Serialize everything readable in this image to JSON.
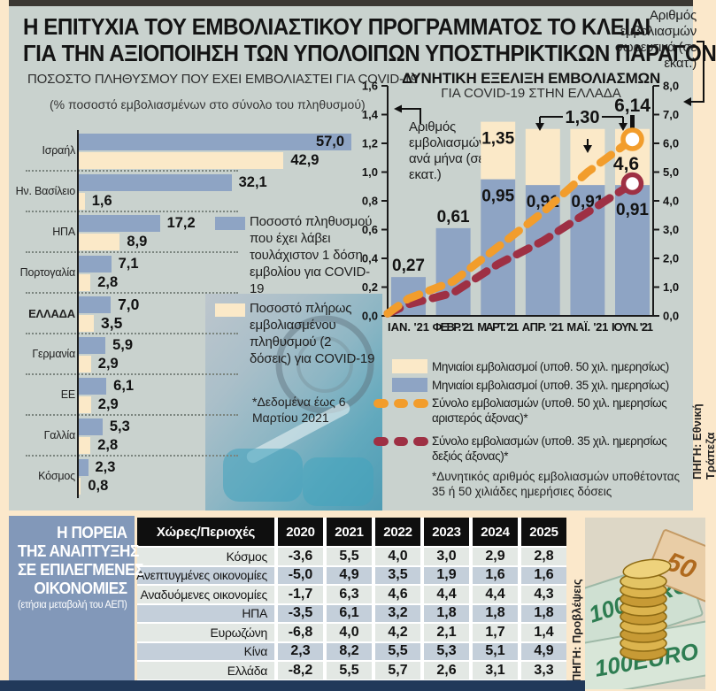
{
  "page": {
    "kicker_line1": "Η ΕΠΙΤΥΧΙΑ ΤΟΥ ΕΜΒΟΛΙΑΣΤΙΚΟΥ ΠΡΟΓΡΑΜΜΑΤΟΣ ΤΟ ΚΛΕΙΔΙ",
    "kicker_line2": "ΓΙΑ ΤΗΝ ΑΞΙΟΠΟΙΗΣΗ ΤΩΝ ΥΠΟΛΟΙΠΩΝ ΥΠΟΣΤΗΡΙΚΤΙΚΩΝ ΠΑΡΑΓΟΝΤΩΝ"
  },
  "sources": {
    "vaccination_chart": "ΠΗΓΗ: Εθνική Τράπεζα",
    "growth_table": "ΠΗΓΗ: Προβλέψεις Citigroup"
  },
  "colors": {
    "bar_blue": "#8ea4c4",
    "bar_cream": "#fbe9c8",
    "line_orange": "#f29d2c",
    "line_maroon": "#9e3044",
    "panel_bg": "#c9d2ce",
    "frame_cream": "#fbe8cb",
    "table_title_blue": "#8298b9",
    "header_black": "#0f0f0f",
    "row_light": "#e3e8e4",
    "row_blue": "#c4cfda",
    "bottom_bar_navy": "#21395a",
    "top_strip": "#3b3833"
  },
  "chart_data": [
    {
      "type": "bar",
      "orientation": "horizontal",
      "title": "ΠΟΣΟΣΤΟ ΠΛΗΘΥΣΜΟΥ ΠΟΥ ΕΧΕΙ ΕΜΒΟΛΙΑΣΤΕΙ ΓΙΑ COVID-19",
      "subtitle": "(% ποσοστό εμβολιασμένων στο σύνολο του πληθυσμού)",
      "categories": [
        "Ισραήλ",
        "Ην. Βασίλειο",
        "ΗΠΑ",
        "Πορτογαλία",
        "ΕΛΛΑΔΑ",
        "Γερμανία",
        "ΕΕ",
        "Γαλλία",
        "Κόσμος"
      ],
      "series": [
        {
          "name": "Ποσοστό πληθυσμού που έχει λάβει τουλάχιστον 1 δόση εμβολίου για COVID-19",
          "values": [
            57.0,
            32.1,
            17.2,
            7.1,
            7.0,
            5.9,
            6.1,
            5.3,
            2.3
          ]
        },
        {
          "name": "Ποσοστό πλήρως εμβολιασμένου πληθυσμού (2 δόσεις) για COVID-19",
          "values": [
            42.9,
            1.6,
            8.9,
            2.8,
            3.5,
            2.9,
            2.9,
            2.8,
            0.8
          ]
        }
      ],
      "highlight_category": "ΕΛΛΑΔΑ",
      "footnote": "*Δεδομένα έως 6 Μαρτίου 2021",
      "xlim": [
        0,
        60
      ]
    },
    {
      "type": "combo",
      "title": "ΔΥΝΗΤΙΚΗ ΕΞΕΛΙΞΗ ΕΜΒΟΛΙΑΣΜΩΝ",
      "subtitle": "ΓΙΑ COVID-19 ΣΤΗΝ ΕΛΛΑΔΑ",
      "categories": [
        "ΙΑΝ. '21",
        "ΦΕΒΡ. '21",
        "ΜΑΡΤ. '21",
        "ΑΠΡ. '21",
        "ΜΑΪ. '21",
        "ΙΟΥΝ. '21"
      ],
      "axis_left_label": "Αριθμός εμβολιασμών ανά μήνα (σε εκατ.)",
      "axis_right_label": "Αριθμός εμβολιασμών σωρευτικά (σε εκατ.)",
      "ylim_left": [
        0,
        1.6
      ],
      "ylim_right": [
        0,
        8.0
      ],
      "bar_series": [
        {
          "name": "Μηνιαίοι εμβολιασμοί (υποθ. 50 χιλ. ημερησίως)",
          "values": [
            null,
            null,
            1.35,
            1.3,
            1.3,
            1.3
          ]
        },
        {
          "name": "Μηνιαίοι εμβολιασμοί (υποθ. 35 χιλ. ημερησίως)",
          "values": [
            0.27,
            0.61,
            0.95,
            0.91,
            0.91,
            0.91
          ]
        }
      ],
      "line_series": [
        {
          "name": "Σύνολο εμβολιασμών (υποθ. 50 χιλ. ημερησίως αριστερός άξονας)*",
          "axis": "cumulative",
          "values": [
            0.6,
            1.2,
            2.4,
            3.6,
            5.0,
            6.14
          ],
          "end_label": "6,14"
        },
        {
          "name": "Σύνολο εμβολιασμών (υποθ. 35 χιλ. ημερησίως δεξιός άξονας)*",
          "axis": "cumulative",
          "values": [
            0.4,
            0.8,
            1.8,
            2.6,
            3.6,
            4.6
          ],
          "end_label": "4,6"
        }
      ],
      "group_annotation": {
        "label": "1,30",
        "months": [
          "ΑΠΡ. '21",
          "ΜΑΪ. '21",
          "ΙΟΥΝ. '21"
        ]
      },
      "footnote": "*Δυνητικός αριθμός εμβολιασμών υποθέτοντας 35 ή 50 χιλιάδες ημερήσιες δόσεις"
    },
    {
      "type": "table",
      "title": "Η ΠΟΡΕΙΑ ΤΗΣ ΑΝΑΠΤΥΞΗΣ ΣΕ ΕΠΙΛΕΓΜΕΝΕΣ ΟΙΚΟΝΟΜΙΕΣ",
      "subtitle": "(ετήσια μεταβολή του ΑΕΠ)",
      "columns": [
        "Χώρες/Περιοχές",
        "2020",
        "2021",
        "2022",
        "2023",
        "2024",
        "2025"
      ],
      "rows": [
        {
          "label": "Κόσμος",
          "values": [
            -3.6,
            5.5,
            4.0,
            3.0,
            2.9,
            2.8
          ]
        },
        {
          "label": "Ανεπτυγμένες οικονομίες",
          "values": [
            -5.0,
            4.9,
            3.5,
            1.9,
            1.6,
            1.6
          ]
        },
        {
          "label": "Αναδυόμενες οικονομίες",
          "values": [
            -1.7,
            6.3,
            4.6,
            4.4,
            4.4,
            4.3
          ]
        },
        {
          "label": "ΗΠΑ",
          "values": [
            -3.5,
            6.1,
            3.2,
            1.8,
            1.8,
            1.8
          ]
        },
        {
          "label": "Ευρωζώνη",
          "values": [
            -6.8,
            4.0,
            4.2,
            2.1,
            1.7,
            1.4
          ]
        },
        {
          "label": "Κίνα",
          "values": [
            2.3,
            8.2,
            5.5,
            5.3,
            5.1,
            4.9
          ]
        },
        {
          "label": "Ελλάδα",
          "values": [
            -8.2,
            5.5,
            5.7,
            2.6,
            3.1,
            3.3
          ]
        }
      ]
    }
  ],
  "table_panel": {
    "title_lines": [
      "Η ΠΟΡΕΙΑ",
      "ΤΗΣ ΑΝΑΠΤΥΞΗΣ",
      "ΣΕ ΕΠΙΛΕΓΜΕΝΕΣ",
      "ΟΙΚΟΝΟΜΙΕΣ"
    ],
    "subtitle": "(ετήσια μεταβολή του ΑΕΠ)"
  },
  "decor": {
    "banknote_100": "100EURO",
    "banknote_100b": "100EURO",
    "banknote_50": "50"
  }
}
